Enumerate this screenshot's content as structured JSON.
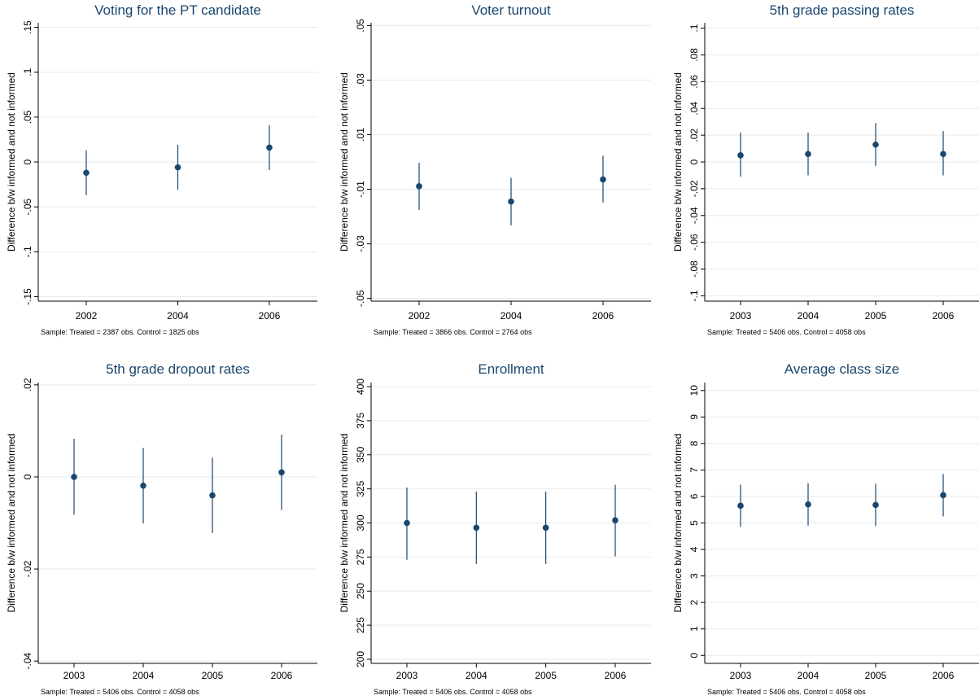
{
  "chart_data": [
    {
      "type": "scatter",
      "title": "Voting for the PT candidate",
      "ylabel": "Difference b/w informed and not informed",
      "note": "Sample: Treated = 2387 obs. Control = 1825 obs",
      "x": [
        "2002",
        "2004",
        "2006"
      ],
      "points": [
        {
          "x": "2002",
          "y": -0.012,
          "lo": -0.037,
          "hi": 0.013
        },
        {
          "x": "2004",
          "y": -0.006,
          "lo": -0.031,
          "hi": 0.019
        },
        {
          "x": "2006",
          "y": 0.016,
          "lo": -0.009,
          "hi": 0.041
        }
      ],
      "ylim": [
        -0.155,
        0.155
      ],
      "yticks": [
        -0.15,
        -0.1,
        -0.05,
        0,
        0.05,
        0.1,
        0.15
      ],
      "yticklabels": [
        "-.15",
        "-.1",
        "-.05",
        "0",
        ".05",
        ".1",
        ".15"
      ],
      "grid": true,
      "color": "#1a476f"
    },
    {
      "type": "scatter",
      "title": "Voter turnout",
      "ylabel": "Difference b/w informed and not informed",
      "note": "Sample: Treated = 3866 obs. Control = 2764 obs",
      "x": [
        "2002",
        "2004",
        "2006"
      ],
      "points": [
        {
          "x": "2002",
          "y": -0.0089,
          "lo": -0.0176,
          "hi": -0.0003
        },
        {
          "x": "2004",
          "y": -0.0145,
          "lo": -0.0232,
          "hi": -0.0058
        },
        {
          "x": "2006",
          "y": -0.0064,
          "lo": -0.0149,
          "hi": 0.0023
        }
      ],
      "ylim": [
        -0.051,
        0.051
      ],
      "yticks": [
        -0.05,
        -0.03,
        -0.01,
        0.01,
        0.03,
        0.05
      ],
      "yticklabels": [
        "-.05",
        "-.03",
        "-.01",
        ".01",
        ".03",
        ".05"
      ],
      "grid": true,
      "color": "#1a476f"
    },
    {
      "type": "scatter",
      "title": "5th grade passing rates",
      "ylabel": "Difference b/w informed and not informed",
      "note": "Sample: Treated = 5406 obs. Control = 4058 obs",
      "x": [
        "2003",
        "2004",
        "2005",
        "2006"
      ],
      "points": [
        {
          "x": "2003",
          "y": 0.005,
          "lo": -0.011,
          "hi": 0.022
        },
        {
          "x": "2004",
          "y": 0.006,
          "lo": -0.01,
          "hi": 0.022
        },
        {
          "x": "2005",
          "y": 0.013,
          "lo": -0.003,
          "hi": 0.029
        },
        {
          "x": "2006",
          "y": 0.006,
          "lo": -0.01,
          "hi": 0.023
        }
      ],
      "ylim": [
        -0.104,
        0.104
      ],
      "yticks": [
        -0.1,
        -0.08,
        -0.06,
        -0.04,
        -0.02,
        0,
        0.02,
        0.04,
        0.06,
        0.08,
        0.1
      ],
      "yticklabels": [
        "-.1",
        "-.08",
        "-.06",
        "-.04",
        "-.02",
        "0",
        ".02",
        ".04",
        ".06",
        ".08",
        ".1"
      ],
      "grid": true,
      "color": "#1a476f"
    },
    {
      "type": "scatter",
      "title": "5th grade dropout rates",
      "ylabel": "Difference b/w informed and not informed",
      "note": "Sample: Treated = 5406 obs. Control = 4058 obs",
      "x": [
        "2003",
        "2004",
        "2005",
        "2006"
      ],
      "points": [
        {
          "x": "2003",
          "y": 0.0,
          "lo": -0.0082,
          "hi": 0.0083
        },
        {
          "x": "2004",
          "y": -0.0019,
          "lo": -0.0101,
          "hi": 0.0063
        },
        {
          "x": "2005",
          "y": -0.004,
          "lo": -0.0122,
          "hi": 0.0042
        },
        {
          "x": "2006",
          "y": 0.001,
          "lo": -0.0072,
          "hi": 0.0092
        }
      ],
      "ylim": [
        -0.0405,
        0.0205
      ],
      "yticks": [
        -0.04,
        -0.02,
        0,
        0.02
      ],
      "yticklabels": [
        "-.04",
        "-.02",
        "0",
        ".02"
      ],
      "grid": true,
      "color": "#1a476f"
    },
    {
      "type": "scatter",
      "title": "Enrollment",
      "ylabel": "Difference b/w informed and not informed",
      "note": "Sample: Treated = 5406 obs. Control = 4058 obs",
      "x": [
        "2003",
        "2004",
        "2005",
        "2006"
      ],
      "points": [
        {
          "x": "2003",
          "y": 300,
          "lo": 273,
          "hi": 326
        },
        {
          "x": "2004",
          "y": 296.5,
          "lo": 270,
          "hi": 323
        },
        {
          "x": "2005",
          "y": 296.5,
          "lo": 270,
          "hi": 323
        },
        {
          "x": "2006",
          "y": 302,
          "lo": 275.5,
          "hi": 328
        }
      ],
      "ylim": [
        197,
        403
      ],
      "yticks": [
        200,
        225,
        250,
        275,
        300,
        325,
        350,
        375,
        400
      ],
      "yticklabels": [
        "200",
        "225",
        "250",
        "275",
        "300",
        "325",
        "350",
        "375",
        "400"
      ],
      "grid": true,
      "color": "#1a476f"
    },
    {
      "type": "scatter",
      "title": "Average class size",
      "ylabel": "Difference b/w informed and not informed",
      "note": "Sample: Treated = 5406 obs. Control = 4058 obs",
      "x": [
        "2003",
        "2004",
        "2005",
        "2006"
      ],
      "points": [
        {
          "x": "2003",
          "y": 5.65,
          "lo": 4.85,
          "hi": 6.45
        },
        {
          "x": "2004",
          "y": 5.7,
          "lo": 4.9,
          "hi": 6.5
        },
        {
          "x": "2005",
          "y": 5.68,
          "lo": 4.88,
          "hi": 6.48
        },
        {
          "x": "2006",
          "y": 6.05,
          "lo": 5.25,
          "hi": 6.85
        }
      ],
      "ylim": [
        -0.3,
        10.3
      ],
      "yticks": [
        0,
        1,
        2,
        3,
        4,
        5,
        6,
        7,
        8,
        9,
        10
      ],
      "yticklabels": [
        "0",
        "1",
        "2",
        "3",
        "4",
        "5",
        "6",
        "7",
        "8",
        "9",
        "10"
      ],
      "grid": true,
      "color": "#1a476f"
    }
  ]
}
